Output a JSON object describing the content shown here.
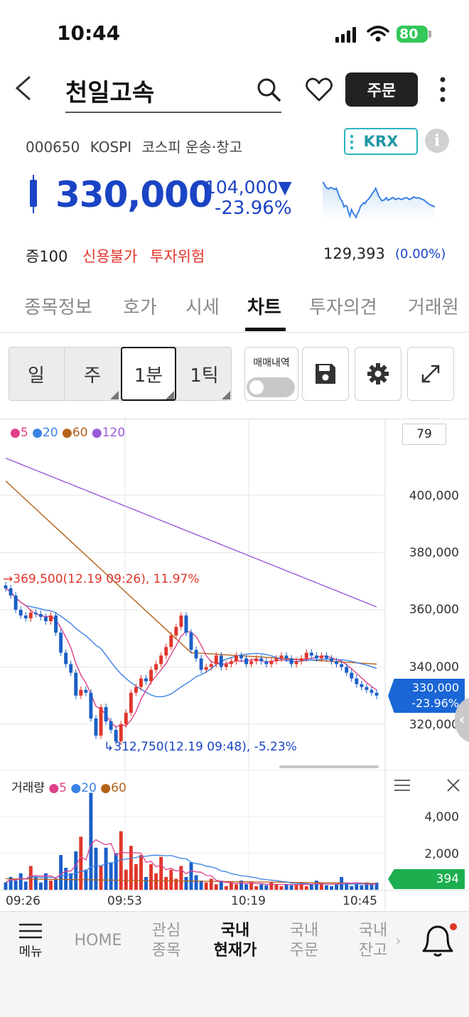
{
  "status_bar": {
    "time": "10:44",
    "battery": "80"
  },
  "header": {
    "title": "천일고속",
    "order_button": "주문"
  },
  "stock_info": {
    "code": "000650",
    "market": "KOSPI",
    "category": "코스피 운송·창고",
    "exchange_badge": "KRX",
    "price": "330,000",
    "change_amount": "104,000",
    "change_arrow": "▼",
    "change_percent": "-23.96%",
    "margin_rate": "증100",
    "credit": "신용불가",
    "risk": "투자위험",
    "volume": "129,393",
    "volume_change": "(0.00%)"
  },
  "tabs": [
    "종목정보",
    "호가",
    "시세",
    "차트",
    "투자의견",
    "거래원"
  ],
  "active_tab": "차트",
  "period_buttons": [
    "일",
    "주",
    "1분",
    "1틱"
  ],
  "active_period": "1분",
  "toolbar": {
    "trade_history_label": "매매내역"
  },
  "chart": {
    "legend": [
      "5",
      "20",
      "60",
      "120"
    ],
    "legend_colors": [
      "#e0408a",
      "#3b82e6",
      "#b4621a",
      "#9a5ad8"
    ],
    "period_value": "79",
    "y_ticks": [
      "400,000",
      "380,000",
      "360,000",
      "340,000",
      "320,000"
    ],
    "current_price": "330,000",
    "current_change": "-23.96%",
    "high_annotation": "369,500(12.19 09:26), 11.97%",
    "low_annotation": "312,750(12.19 09:48), -5.23%",
    "volume_title": "거래량",
    "volume_legend": [
      "5",
      "20",
      "60"
    ],
    "volume_ticks": [
      "4,000",
      "2,000"
    ],
    "volume_current": "394",
    "x_labels": [
      "09:26",
      "09:53",
      "10:19",
      "10:45"
    ]
  },
  "chart_data": {
    "type": "candlestick",
    "y_range": [
      305000,
      415000
    ],
    "closes": [
      367500,
      365000,
      360000,
      358000,
      357000,
      359000,
      358500,
      357500,
      356000,
      358000,
      352000,
      345000,
      341000,
      338000,
      330000,
      332000,
      331000,
      322000,
      316000,
      326000,
      321000,
      318000,
      314000,
      320000,
      324000,
      331000,
      333000,
      336000,
      335000,
      339000,
      341000,
      344000,
      347000,
      351000,
      354000,
      358000,
      352000,
      346000,
      343000,
      339000,
      340000,
      341000,
      344000,
      340000,
      341000,
      342000,
      344000,
      343000,
      341000,
      342000,
      343000,
      342000,
      341000,
      342000,
      343000,
      344000,
      343000,
      341000,
      342000,
      343000,
      345000,
      344000,
      343000,
      344000,
      343000,
      342000,
      341000,
      340000,
      338000,
      336000,
      334000,
      333000,
      332000,
      331000,
      330000
    ],
    "volume_range": [
      0,
      5500
    ],
    "volumes": [
      400,
      700,
      500,
      900,
      450,
      1300,
      700,
      400,
      900,
      500,
      600,
      1900,
      1200,
      900,
      2100,
      2900,
      1100,
      5300,
      2300,
      1300,
      2300,
      1500,
      2000,
      3200,
      1100,
      2400,
      1400,
      1900,
      700,
      1400,
      900,
      1800,
      700,
      1100,
      600,
      1300,
      700,
      1500,
      800,
      500,
      400,
      600,
      300,
      500,
      200,
      400,
      300,
      500,
      300,
      400,
      200,
      300,
      250,
      400,
      300,
      200,
      300,
      250,
      300,
      400,
      200,
      300,
      500,
      300,
      250,
      200,
      300,
      700,
      400,
      200,
      300,
      250,
      400,
      300,
      394
    ]
  },
  "bottom_nav": {
    "menu_label": "메뉴",
    "home": "HOME",
    "watchlist": [
      "관심",
      "종목"
    ],
    "current_price": [
      "국내",
      "현재가"
    ],
    "domestic_order": [
      "국내",
      "주문"
    ],
    "domestic_balance": [
      "국내",
      "잔고"
    ]
  }
}
